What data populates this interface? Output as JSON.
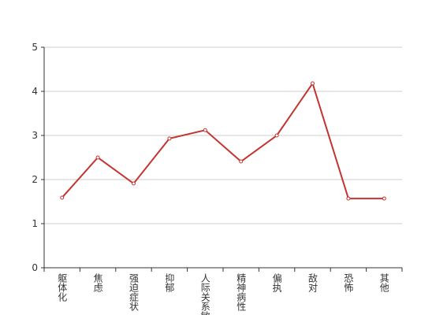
{
  "chart_data": {
    "type": "line",
    "categories": [
      "躯体化",
      "焦虑",
      "强迫症状",
      "抑郁",
      "人际关系敏感",
      "精神病性",
      "偏执",
      "敌对",
      "恐怖",
      "其他"
    ],
    "values": [
      1.59,
      2.5,
      1.91,
      2.93,
      3.12,
      2.41,
      3.0,
      4.18,
      1.57,
      1.57
    ],
    "color": "#c23531",
    "ylim": [
      0,
      5
    ],
    "yticks": [
      0,
      1,
      2,
      3,
      4,
      5
    ],
    "grid": true
  }
}
